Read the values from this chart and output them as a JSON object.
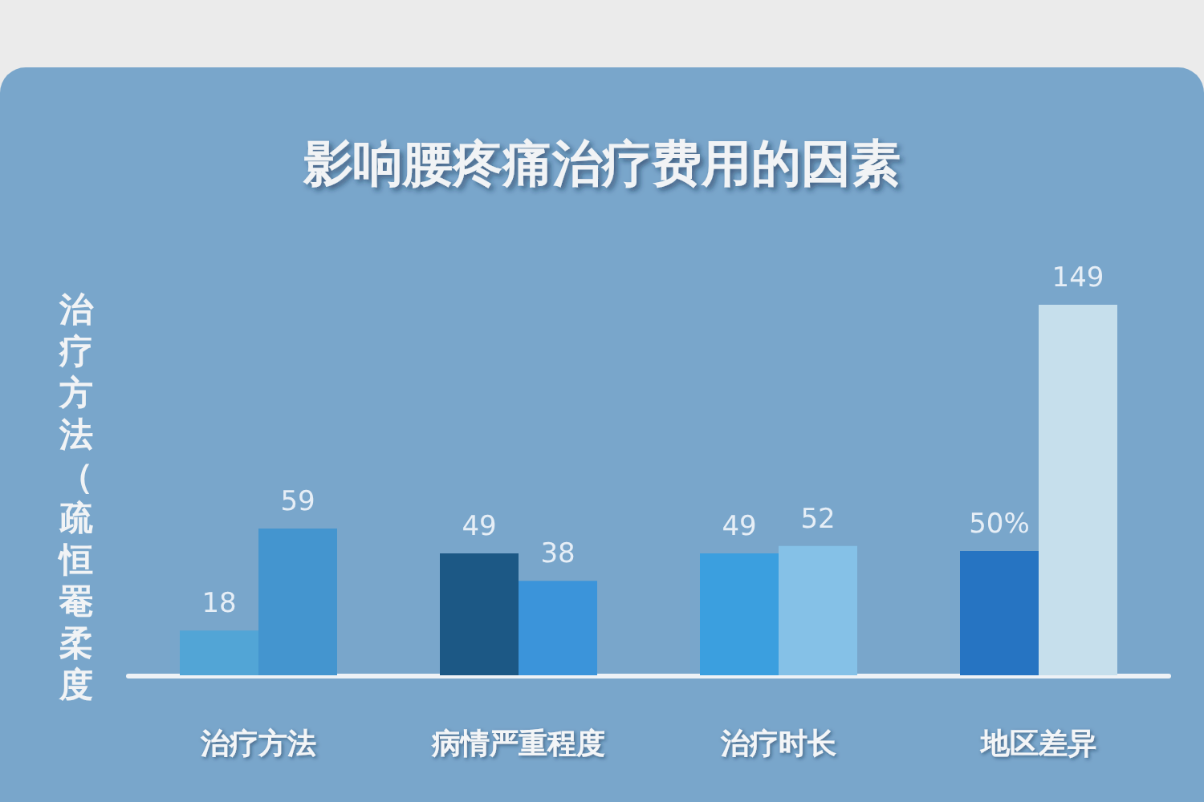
{
  "chart_data": {
    "type": "bar",
    "title": "影响腰疼痛治疗费用的因素",
    "ylabel": "治疗方法（疏恒罨柔度",
    "categories": [
      "治疗方法",
      "病情严重程度",
      "治疗时长",
      "地区差异"
    ],
    "tick_labels": "x",
    "series": [
      {
        "colors": [
          "#52a5d6",
          "#1c5885",
          "#3b9fdf",
          "#2674c2"
        ],
        "values": [
          18,
          49,
          49,
          50
        ],
        "value_labels": [
          "18",
          "49",
          "49",
          "50%"
        ]
      },
      {
        "colors": [
          "#4495cf",
          "#3b94da",
          "#85c1e7",
          "#c6dfec"
        ],
        "values": [
          59,
          38,
          52,
          149
        ],
        "value_labels": [
          "59",
          "38",
          "52",
          "149"
        ]
      }
    ]
  }
}
